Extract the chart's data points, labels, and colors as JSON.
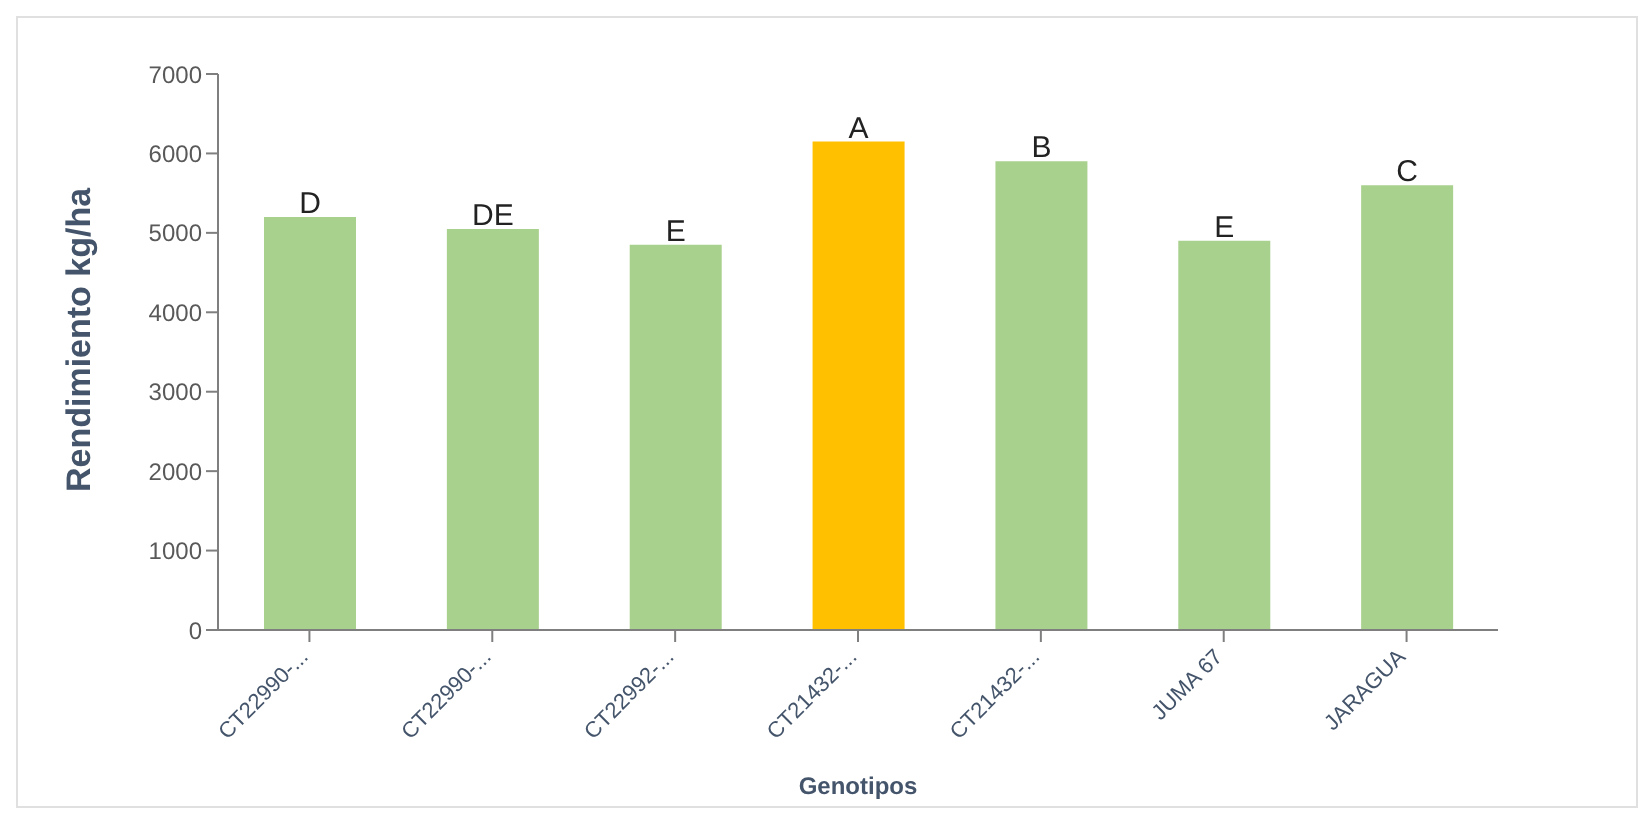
{
  "chart_data": {
    "type": "bar",
    "xlabel": "Genotipos",
    "ylabel": "Rendimiento kg/ha",
    "categories": [
      "CT22990-...",
      "CT22990-...",
      "CT22992-...",
      "CT21432-...",
      "CT21432-...",
      "JUMA 67",
      "JARAGUA"
    ],
    "values": [
      5200,
      5050,
      4850,
      6150,
      5900,
      4900,
      5600
    ],
    "colors": [
      "#a9d18e",
      "#a9d18e",
      "#a9d18e",
      "#ffc000",
      "#a9d18e",
      "#a9d18e",
      "#a9d18e"
    ],
    "value_labels": [
      "D",
      "DE",
      "E",
      "A",
      "B",
      "E",
      "C"
    ],
    "ylim": [
      0,
      7000
    ],
    "yticks": [
      0,
      1000,
      2000,
      3000,
      4000,
      5000,
      6000,
      7000
    ],
    "grid": false,
    "legend": false
  }
}
